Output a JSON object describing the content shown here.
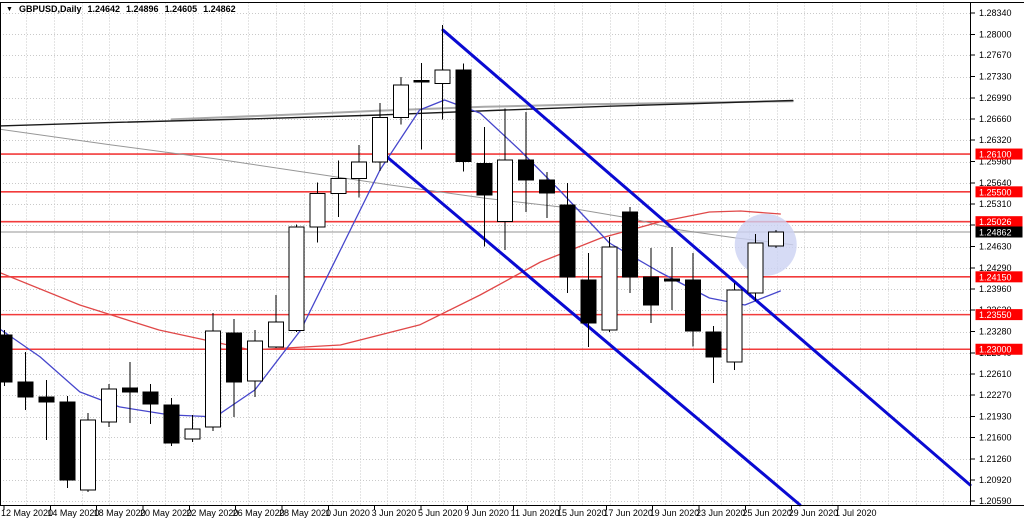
{
  "window": {
    "collapse_icon": "▼",
    "symbol": "GBPUSD,Daily",
    "open": "1.24642",
    "high": "1.24896",
    "low": "1.24605",
    "close": "1.24862"
  },
  "price_axis": {
    "ticks": [
      "1.28340",
      "1.28000",
      "1.27670",
      "1.27330",
      "1.26990",
      "1.26660",
      "1.26320",
      "1.25980",
      "1.25640",
      "1.25310",
      "1.24970",
      "1.24630",
      "1.24290",
      "1.23960",
      "1.23620",
      "1.23280",
      "1.22940",
      "1.22610",
      "1.22270",
      "1.21930",
      "1.21600",
      "1.21260",
      "1.20920",
      "1.20590"
    ]
  },
  "time_axis": {
    "labels": [
      "12 May 2020",
      "14 May 2020",
      "18 May 2020",
      "20 May 2020",
      "22 May 2020",
      "26 May 2020",
      "28 May 2020",
      "1 Jun 2020",
      "3 Jun 2020",
      "5 Jun 2020",
      "9 Jun 2020",
      "11 Jun 2020",
      "15 Jun 2020",
      "17 Jun 2020",
      "19 Jun 2020",
      "23 Jun 2020",
      "25 Jun 2020",
      "29 Jun 2020",
      "1 Jul 2020"
    ]
  },
  "chart_data": {
    "type": "candlestick",
    "title": "GBPUSD Daily",
    "symbol": "GBPUSD",
    "timeframe": "Daily",
    "ylim": [
      1.2059,
      1.2834
    ],
    "grid": true,
    "candle_columns": [
      "date",
      "open",
      "high",
      "low",
      "close"
    ],
    "candles": [
      [
        "12 May",
        1.23227,
        1.23306,
        1.22417,
        1.22481
      ],
      [
        "13 May",
        1.22481,
        1.22957,
        1.22037,
        1.22244
      ],
      [
        "14 May",
        1.22244,
        1.22513,
        1.21561,
        1.22164
      ],
      [
        "15 May",
        1.22164,
        1.22259,
        1.20799,
        1.20926
      ],
      [
        "18 May",
        1.20767,
        1.21989,
        1.20735,
        1.21878
      ],
      [
        "19 May",
        1.21846,
        1.22449,
        1.21767,
        1.2237
      ],
      [
        "20 May",
        1.22386,
        1.22798,
        1.2183,
        1.22322
      ],
      [
        "21 May",
        1.22322,
        1.22449,
        1.21814,
        1.22132
      ],
      [
        "22 May",
        1.22116,
        1.22227,
        1.21466,
        1.21513
      ],
      [
        "25 May",
        1.21576,
        1.21957,
        1.21529,
        1.21735
      ],
      [
        "26 May",
        1.21767,
        1.23576,
        1.21703,
        1.23291
      ],
      [
        "27 May",
        1.23259,
        1.23481,
        1.21926,
        1.22481
      ],
      [
        "28 May",
        1.22497,
        1.23306,
        1.22244,
        1.23132
      ],
      [
        "29 May",
        1.23037,
        1.23862,
        1.23021,
        1.23433
      ],
      [
        "1 Jun",
        1.233,
        1.24983,
        1.2327,
        1.2494
      ],
      [
        "2 Jun",
        1.2494,
        1.2565,
        1.24694,
        1.25477
      ],
      [
        "3 Jun",
        1.25477,
        1.25996,
        1.25098,
        1.25708
      ],
      [
        "4 Jun",
        1.25708,
        1.26242,
        1.25412,
        1.25974
      ],
      [
        "5 Jun",
        1.25974,
        1.26908,
        1.25834,
        1.26684
      ],
      [
        "8 Jun",
        1.26684,
        1.27324,
        1.26568,
        1.27196
      ],
      [
        "9 Jun",
        1.27268,
        1.27546,
        1.2617,
        1.27252
      ],
      [
        "10 Jun",
        1.27222,
        1.28147,
        1.26651,
        1.27434
      ],
      [
        "11 Jun",
        1.27434,
        1.2754,
        1.25819,
        1.25978
      ],
      [
        "12 Jun",
        1.25952,
        1.26533,
        1.24629,
        1.25448
      ],
      [
        "15 Jun",
        1.25025,
        1.26825,
        1.24576,
        1.26005
      ],
      [
        "16 Jun",
        1.26005,
        1.26767,
        1.25179,
        1.25687
      ],
      [
        "17 Jun",
        1.25687,
        1.25814,
        1.25084,
        1.25481
      ],
      [
        "18 Jun",
        1.2529,
        1.2564,
        1.23894,
        1.24148
      ],
      [
        "19 Jun",
        1.241,
        1.24529,
        1.23036,
        1.23417
      ],
      [
        "22 Jun",
        1.23306,
        1.24783,
        1.23275,
        1.24624
      ],
      [
        "23 Jun",
        1.25179,
        1.25259,
        1.23894,
        1.24148
      ],
      [
        "24 Jun",
        1.24148,
        1.24608,
        1.23418,
        1.237
      ],
      [
        "25 Jun",
        1.24116,
        1.24624,
        1.23624,
        1.24084
      ],
      [
        "26 Jun",
        1.241,
        1.24529,
        1.23041,
        1.2329
      ],
      [
        "29 Jun",
        1.23275,
        1.2337,
        1.22465,
        1.22878
      ],
      [
        "30 Jun",
        1.22798,
        1.24052,
        1.22671,
        1.23941
      ],
      [
        "1 Jul",
        1.23893,
        1.2483,
        1.23766,
        1.24687
      ],
      [
        "2 Jul",
        1.24642,
        1.24896,
        1.24605,
        1.24862
      ]
    ],
    "hlines": [
      {
        "label": "1.26100",
        "price": 1.261
      },
      {
        "label": "1.25500",
        "price": 1.255
      },
      {
        "label": "1.25026",
        "price": 1.25026
      },
      {
        "label": "1.24150",
        "price": 1.2415
      },
      {
        "label": "1.23550",
        "price": 1.2355
      },
      {
        "label": "1.23000",
        "price": 1.23
      }
    ],
    "current_price": {
      "label": "1.24862",
      "price": 1.24862
    },
    "trendlines": [
      {
        "name": "channel-upper",
        "i1": 21.02,
        "p1": 1.28069,
        "i2": 46.3,
        "p2": 1.20846
      },
      {
        "name": "channel-lower",
        "i1": 18.34,
        "p1": 1.26053,
        "i2": 38.14,
        "p2": 1.20529
      }
    ],
    "moving_averages": [
      {
        "name": "ma-gray-flat",
        "color": "#a9a9a9",
        "width": 2,
        "points": [
          [
            8,
            1.2665
          ],
          [
            14,
            1.2673
          ],
          [
            18,
            1.2679
          ],
          [
            23,
            1.2685
          ],
          [
            28,
            1.2689
          ],
          [
            33,
            1.26915
          ],
          [
            37.8,
            1.2694
          ]
        ]
      },
      {
        "name": "ma-black-200",
        "color": "#1a1a1a",
        "width": 1.4,
        "points": [
          [
            -0.3,
            1.26545
          ],
          [
            5,
            1.266
          ],
          [
            12,
            1.2666
          ],
          [
            18,
            1.2672
          ],
          [
            24,
            1.268
          ],
          [
            29,
            1.2686
          ],
          [
            33,
            1.269
          ],
          [
            37.8,
            1.2695
          ]
        ]
      },
      {
        "name": "ma-gray-desc",
        "color": "#979797",
        "width": 1,
        "points": [
          [
            -0.3,
            1.26497
          ],
          [
            5,
            1.2625
          ],
          [
            10,
            1.2603
          ],
          [
            14,
            1.2583
          ],
          [
            18.5,
            1.25608
          ],
          [
            23,
            1.254
          ],
          [
            27.1,
            1.25243
          ],
          [
            30,
            1.2508
          ],
          [
            32.4,
            1.24894
          ],
          [
            35,
            1.2477
          ],
          [
            37.8,
            1.2466
          ]
        ]
      },
      {
        "name": "ma-red",
        "color": "#e04848",
        "width": 1.3,
        "points": [
          [
            -0.3,
            1.24227
          ],
          [
            3.6,
            1.23703
          ],
          [
            7.4,
            1.23306
          ],
          [
            11.8,
            1.22989
          ],
          [
            16.1,
            1.23068
          ],
          [
            19.9,
            1.23386
          ],
          [
            22.8,
            1.23862
          ],
          [
            25.7,
            1.24386
          ],
          [
            28.6,
            1.24767
          ],
          [
            31.4,
            1.25021
          ],
          [
            33.8,
            1.25179
          ],
          [
            35.3,
            1.25195
          ],
          [
            37.2,
            1.25148
          ]
        ]
      },
      {
        "name": "ma-blue",
        "color": "#4646cc",
        "width": 1.3,
        "points": [
          [
            -0.3,
            1.23338
          ],
          [
            1.7,
            1.22878
          ],
          [
            3.6,
            1.22322
          ],
          [
            5.5,
            1.22084
          ],
          [
            7.9,
            1.21957
          ],
          [
            10.1,
            1.21925
          ],
          [
            12,
            1.22354
          ],
          [
            14.2,
            1.23306
          ],
          [
            16.1,
            1.24576
          ],
          [
            18,
            1.25846
          ],
          [
            19.9,
            1.26799
          ],
          [
            21.1,
            1.26958
          ],
          [
            22.8,
            1.26751
          ],
          [
            24.7,
            1.26164
          ],
          [
            26.6,
            1.25529
          ],
          [
            29,
            1.24687
          ],
          [
            31.4,
            1.24227
          ],
          [
            33.8,
            1.23814
          ],
          [
            35.5,
            1.23703
          ],
          [
            37.2,
            1.23925
          ]
        ]
      }
    ],
    "highlight": {
      "center_index": 36.5,
      "center_price": 1.2466
    }
  },
  "colors": {
    "background": "#ffffff",
    "grid": "#c9c9c9",
    "bull_body": "#ffffff",
    "bear_body": "#000000",
    "candle_outline": "#000000",
    "hline": "#f23b3b",
    "hline_box": "#fe0000",
    "current_line": "#b9b9b9",
    "current_box": "#000000",
    "channel": "#0a0ad2",
    "highlight_fill": "#ccd2f2",
    "frame": "#000000"
  }
}
